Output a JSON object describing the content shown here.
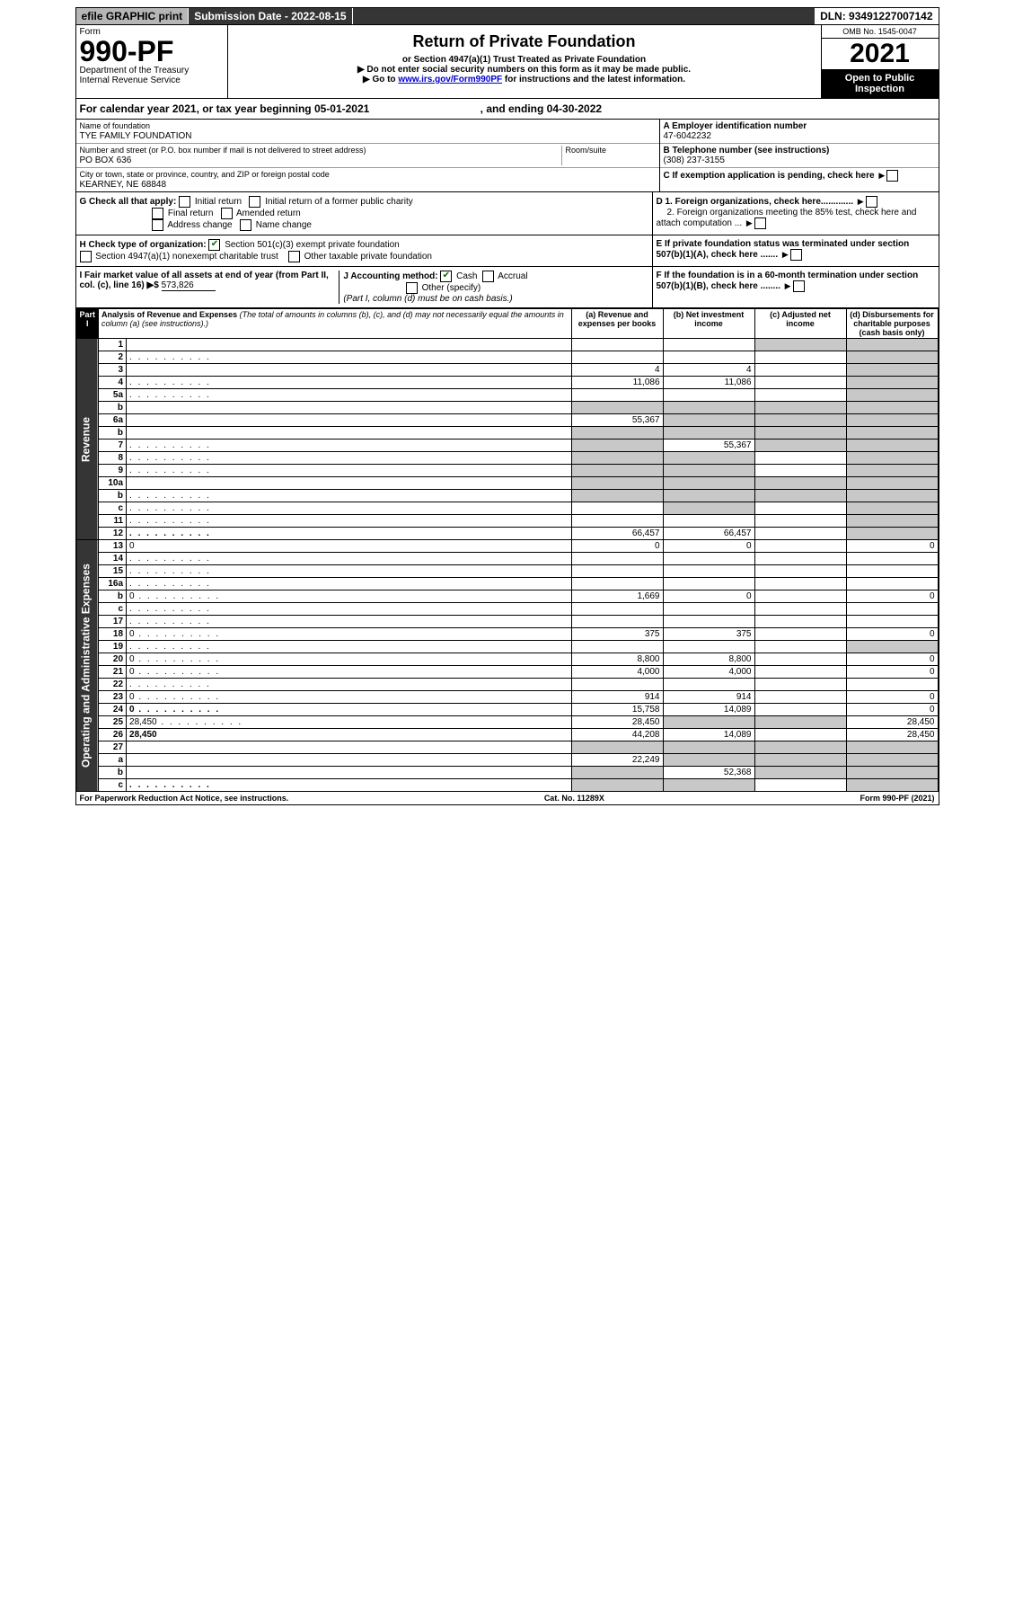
{
  "topbar": {
    "efile": "efile GRAPHIC print",
    "submission": "Submission Date - 2022-08-15",
    "dln": "DLN: 93491227007142"
  },
  "header": {
    "form_label": "Form",
    "form_no": "990-PF",
    "dept": "Department of the Treasury",
    "irs": "Internal Revenue Service",
    "title": "Return of Private Foundation",
    "subtitle": "or Section 4947(a)(1) Trust Treated as Private Foundation",
    "line1": "▶ Do not enter social security numbers on this form as it may be made public.",
    "line2_pre": "▶ Go to ",
    "line2_link": "www.irs.gov/Form990PF",
    "line2_post": " for instructions and the latest information.",
    "omb": "OMB No. 1545-0047",
    "year": "2021",
    "open": "Open to Public Inspection"
  },
  "calyear": {
    "text": "For calendar year 2021, or tax year beginning 05-01-2021",
    "end": ", and ending 04-30-2022"
  },
  "entity": {
    "name_label": "Name of foundation",
    "name": "TYE FAMILY FOUNDATION",
    "addr_label": "Number and street (or P.O. box number if mail is not delivered to street address)",
    "addr": "PO BOX 636",
    "room_label": "Room/suite",
    "city_label": "City or town, state or province, country, and ZIP or foreign postal code",
    "city": "KEARNEY, NE  68848",
    "a_label": "A Employer identification number",
    "a_val": "47-6042232",
    "b_label": "B Telephone number (see instructions)",
    "b_val": "(308) 237-3155",
    "c_label": "C If exemption application is pending, check here"
  },
  "g": {
    "label": "G Check all that apply:",
    "opts": [
      "Initial return",
      "Initial return of a former public charity",
      "Final return",
      "Amended return",
      "Address change",
      "Name change"
    ],
    "d1": "D 1. Foreign organizations, check here.............",
    "d2": "2. Foreign organizations meeting the 85% test, check here and attach computation ...",
    "e": "E  If private foundation status was terminated under section 507(b)(1)(A), check here .......",
    "f": "F  If the foundation is in a 60-month termination under section 507(b)(1)(B), check here ........"
  },
  "h": {
    "label": "H Check type of organization:",
    "opt1": "Section 501(c)(3) exempt private foundation",
    "opt2": "Section 4947(a)(1) nonexempt charitable trust",
    "opt3": "Other taxable private foundation"
  },
  "i": {
    "label": "I Fair market value of all assets at end of year (from Part II, col. (c), line 16) ▶$",
    "val": "573,826"
  },
  "j": {
    "label": "J Accounting method:",
    "cash": "Cash",
    "accrual": "Accrual",
    "other": "Other (specify)",
    "note": "(Part I, column (d) must be on cash basis.)"
  },
  "part1": {
    "label": "Part I",
    "title": "Analysis of Revenue and Expenses",
    "desc": "(The total of amounts in columns (b), (c), and (d) may not necessarily equal the amounts in column (a) (see instructions).)",
    "cols": {
      "a": "(a) Revenue and expenses per books",
      "b": "(b) Net investment income",
      "c": "(c) Adjusted net income",
      "d": "(d) Disbursements for charitable purposes (cash basis only)"
    }
  },
  "side": {
    "rev": "Revenue",
    "exp": "Operating and Administrative Expenses"
  },
  "rows": [
    {
      "n": "1",
      "d": "",
      "a": "",
      "b": "",
      "c": "",
      "grey_d": true,
      "grey_c": true
    },
    {
      "n": "2",
      "d": "",
      "dots": true,
      "a": "",
      "b": "",
      "c": "",
      "grey_d": true,
      "grey_all": true,
      "bold": false
    },
    {
      "n": "3",
      "d": "",
      "a": "4",
      "b": "4",
      "c": "",
      "grey_d": true
    },
    {
      "n": "4",
      "d": "",
      "dots": true,
      "a": "11,086",
      "b": "11,086",
      "c": "",
      "grey_d": true
    },
    {
      "n": "5a",
      "d": "",
      "dots": true,
      "a": "",
      "b": "",
      "c": "",
      "grey_d": true
    },
    {
      "n": "b",
      "d": "",
      "a": "",
      "b": "",
      "c": "",
      "grey_abcd": true
    },
    {
      "n": "6a",
      "d": "",
      "a": "55,367",
      "b": "",
      "c": "",
      "grey_bcd": true
    },
    {
      "n": "b",
      "d": "",
      "a": "",
      "b": "",
      "c": "",
      "grey_abcd": true
    },
    {
      "n": "7",
      "d": "",
      "dots": true,
      "a": "",
      "b": "55,367",
      "c": "",
      "grey_a": true,
      "grey_cd": true
    },
    {
      "n": "8",
      "d": "",
      "dots": true,
      "a": "",
      "b": "",
      "c": "",
      "grey_ab": true,
      "grey_d": true
    },
    {
      "n": "9",
      "d": "",
      "dots": true,
      "a": "",
      "b": "",
      "c": "",
      "grey_ab": true,
      "grey_d": true
    },
    {
      "n": "10a",
      "d": "",
      "a": "",
      "b": "",
      "c": "",
      "grey_abcd": true
    },
    {
      "n": "b",
      "d": "",
      "dots": true,
      "a": "",
      "b": "",
      "c": "",
      "grey_abcd": true
    },
    {
      "n": "c",
      "d": "",
      "dots": true,
      "a": "",
      "b": "",
      "c": "",
      "grey_b": true,
      "grey_d": true
    },
    {
      "n": "11",
      "d": "",
      "dots": true,
      "a": "",
      "b": "",
      "c": "",
      "grey_d": true
    },
    {
      "n": "12",
      "d": "",
      "dots": true,
      "bold": true,
      "a": "66,457",
      "b": "66,457",
      "c": "",
      "grey_d": true
    },
    {
      "n": "13",
      "d": "0",
      "a": "0",
      "b": "0",
      "c": ""
    },
    {
      "n": "14",
      "d": "",
      "dots": true,
      "a": "",
      "b": "",
      "c": ""
    },
    {
      "n": "15",
      "d": "",
      "dots": true,
      "a": "",
      "b": "",
      "c": ""
    },
    {
      "n": "16a",
      "d": "",
      "dots": true,
      "a": "",
      "b": "",
      "c": ""
    },
    {
      "n": "b",
      "d": "0",
      "dots": true,
      "a": "1,669",
      "b": "0",
      "c": ""
    },
    {
      "n": "c",
      "d": "",
      "dots": true,
      "a": "",
      "b": "",
      "c": ""
    },
    {
      "n": "17",
      "d": "",
      "dots": true,
      "a": "",
      "b": "",
      "c": ""
    },
    {
      "n": "18",
      "d": "0",
      "dots": true,
      "a": "375",
      "b": "375",
      "c": ""
    },
    {
      "n": "19",
      "d": "",
      "dots": true,
      "a": "",
      "b": "",
      "c": "",
      "grey_d": true
    },
    {
      "n": "20",
      "d": "0",
      "dots": true,
      "a": "8,800",
      "b": "8,800",
      "c": ""
    },
    {
      "n": "21",
      "d": "0",
      "dots": true,
      "a": "4,000",
      "b": "4,000",
      "c": ""
    },
    {
      "n": "22",
      "d": "",
      "dots": true,
      "a": "",
      "b": "",
      "c": ""
    },
    {
      "n": "23",
      "d": "0",
      "dots": true,
      "a": "914",
      "b": "914",
      "c": ""
    },
    {
      "n": "24",
      "d": "0",
      "dots": true,
      "bold": true,
      "a": "15,758",
      "b": "14,089",
      "c": ""
    },
    {
      "n": "25",
      "d": "28,450",
      "dots": true,
      "a": "28,450",
      "b": "",
      "c": "",
      "grey_bc": true
    },
    {
      "n": "26",
      "d": "28,450",
      "bold": true,
      "a": "44,208",
      "b": "14,089",
      "c": ""
    },
    {
      "n": "27",
      "d": "",
      "a": "",
      "b": "",
      "c": "",
      "grey_abcd": true
    },
    {
      "n": "a",
      "d": "",
      "bold": true,
      "a": "22,249",
      "b": "",
      "c": "",
      "grey_bcd": true
    },
    {
      "n": "b",
      "d": "",
      "bold": true,
      "a": "",
      "b": "52,368",
      "c": "",
      "grey_a": true,
      "grey_cd": true
    },
    {
      "n": "c",
      "d": "",
      "dots": true,
      "bold": true,
      "a": "",
      "b": "",
      "c": "",
      "grey_ab": true,
      "grey_d": true
    }
  ],
  "footer": {
    "left": "For Paperwork Reduction Act Notice, see instructions.",
    "mid": "Cat. No. 11289X",
    "right": "Form 990-PF (2021)"
  }
}
